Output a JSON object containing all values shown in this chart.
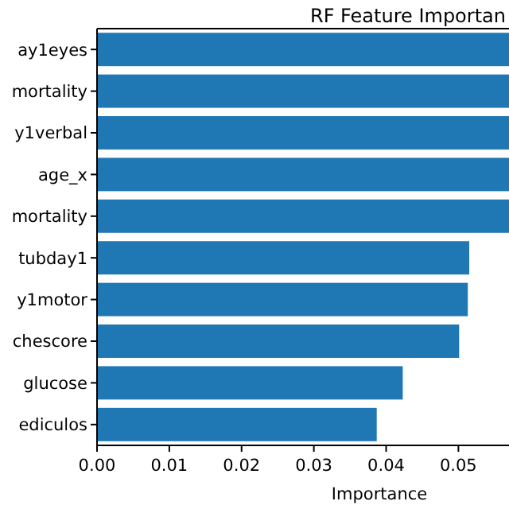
{
  "chart_data": {
    "type": "bar",
    "orientation": "horizontal",
    "title": "RF Feature Importan",
    "xlabel": "Importance",
    "categories": [
      "ay1eyes",
      "mortality",
      "y1verbal",
      "age_x",
      "mortality",
      "tubday1",
      "y1motor",
      "chescore",
      "glucose",
      "ediculos"
    ],
    "values": [
      0.057,
      0.057,
      0.057,
      0.057,
      0.057,
      0.0515,
      0.0513,
      0.0501,
      0.0423,
      0.0387
    ],
    "color": "#1f77b4",
    "xlim": [
      0,
      0.057
    ],
    "xticks": [
      {
        "value": 0,
        "label": "0.00"
      },
      {
        "value": 0.01,
        "label": "0.01"
      },
      {
        "value": 0.02,
        "label": "0.02"
      },
      {
        "value": 0.03,
        "label": "0.03"
      },
      {
        "value": 0.04,
        "label": "0.04"
      },
      {
        "value": 0.05,
        "label": "0.05"
      }
    ],
    "grid": false
  }
}
